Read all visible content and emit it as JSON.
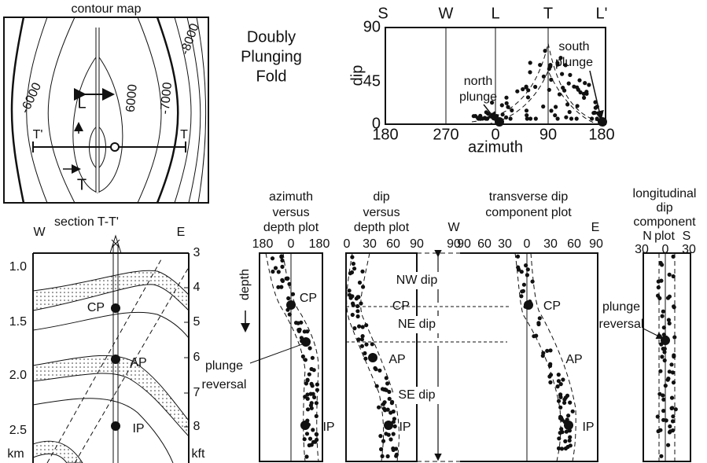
{
  "contour_map": {
    "title": "contour map",
    "contour_labels": [
      "-6000",
      "6000",
      "-7000",
      "-8000"
    ],
    "labels": [
      "L",
      "T'",
      "T"
    ]
  },
  "fold_title": [
    "Doubly",
    "Plunging",
    "Fold"
  ],
  "dip_azimuth_plot": {
    "top_labels": [
      "S",
      "W",
      "L",
      "T",
      "L'"
    ],
    "y_label": "dip",
    "y_ticks": [
      "90",
      "45",
      "0"
    ],
    "x_label": "azimuth",
    "x_ticks": [
      "180",
      "270",
      "0",
      "90",
      "180"
    ],
    "annotations": [
      [
        "north",
        "plunge"
      ],
      [
        "south",
        "plunge"
      ]
    ]
  },
  "section": {
    "title": "section T-T'",
    "left_label": "W",
    "right_label": "E",
    "km_ticks": [
      "1.0",
      "1.5",
      "2.0",
      "2.5"
    ],
    "km_unit": "km",
    "kft_ticks": [
      "3",
      "4",
      "5",
      "6",
      "7",
      "8"
    ],
    "kft_unit": "kft",
    "points": [
      "CP",
      "AP",
      "IP"
    ]
  },
  "azimuth_depth_plot": {
    "title": [
      "azimuth",
      "versus",
      "depth plot"
    ],
    "ticks": [
      "180",
      "0",
      "180"
    ],
    "axis_label": "depth",
    "points": [
      "CP",
      "IP"
    ],
    "annotation": [
      "plunge",
      "reversal"
    ]
  },
  "dip_depth_plot": {
    "title": [
      "dip",
      "versus",
      "depth plot"
    ],
    "ticks": [
      "0",
      "30",
      "60",
      "90"
    ],
    "points": [
      "AP",
      "IP"
    ]
  },
  "dip_zones": {
    "top_label": "W",
    "top_tick": "90",
    "zones": [
      "NW dip",
      "NE dip",
      "SE dip"
    ],
    "point": "CP"
  },
  "transverse_plot": {
    "title": [
      "transverse dip",
      "component plot"
    ],
    "ticks": [
      "90",
      "60",
      "30",
      "0",
      "30",
      "60",
      "90"
    ],
    "right_label": "E",
    "points": [
      "CP",
      "AP",
      "IP"
    ]
  },
  "longitudinal_plot": {
    "title": [
      "longitudinal",
      "dip",
      "component",
      "plot"
    ],
    "left_label": "N",
    "right_label": "S",
    "ticks": [
      "30",
      "0",
      "30"
    ],
    "annotation": [
      "plunge",
      "reversal"
    ]
  }
}
